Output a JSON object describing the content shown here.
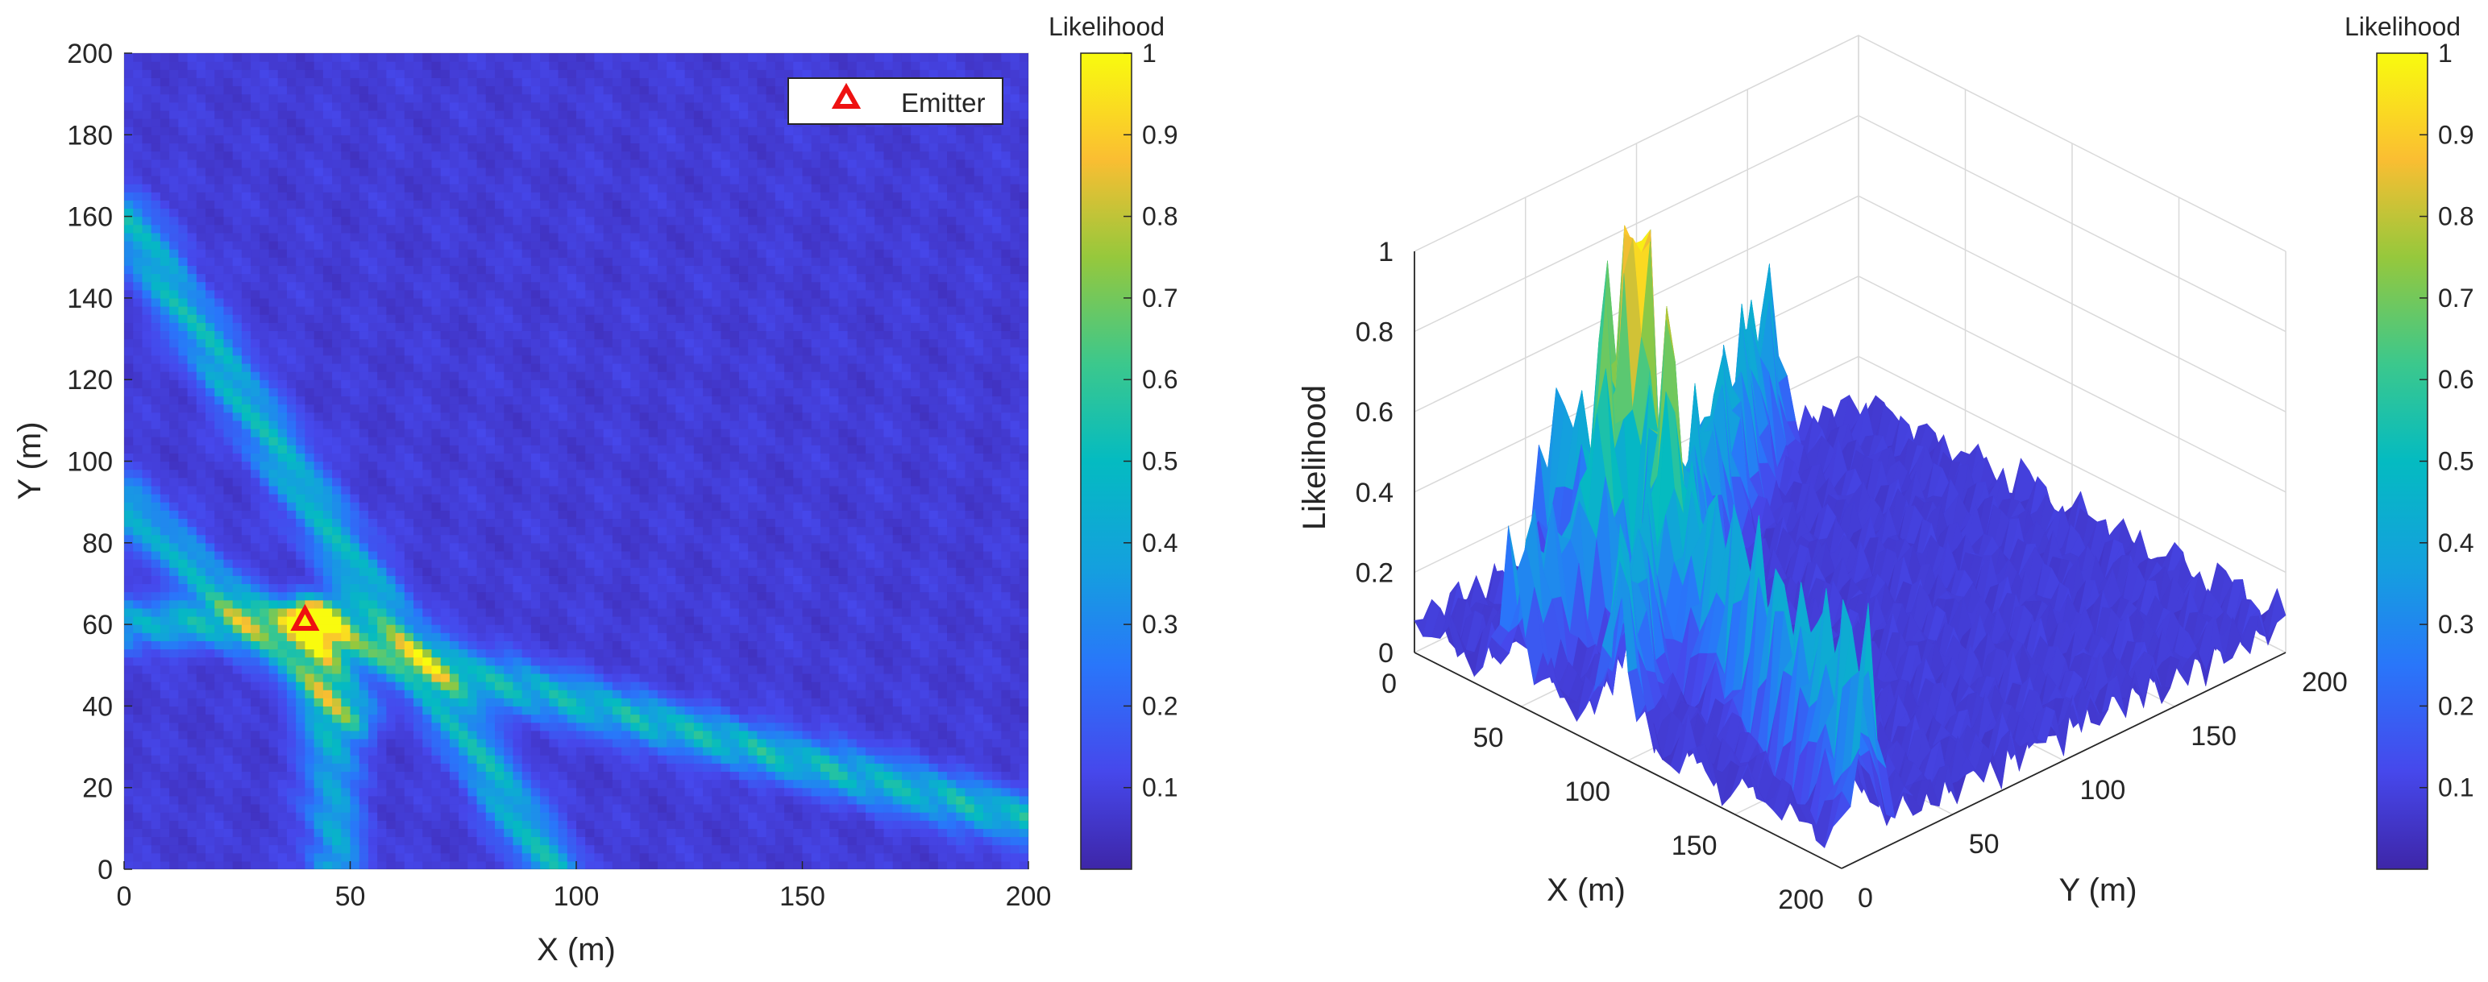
{
  "chart_data": [
    {
      "type": "heatmap",
      "name": "likelihood-map-2d",
      "xlabel": "X (m)",
      "ylabel": "Y (m)",
      "xlim": [
        0,
        200
      ],
      "ylim": [
        0,
        200
      ],
      "xticks": [
        0,
        50,
        100,
        150,
        200
      ],
      "yticks": [
        0,
        20,
        40,
        60,
        80,
        100,
        120,
        140,
        160,
        180,
        200
      ],
      "colorbar": {
        "title": "Likelihood",
        "ticks": [
          0.1,
          0.2,
          0.3,
          0.4,
          0.5,
          0.6,
          0.7,
          0.8,
          0.9,
          1
        ],
        "range": [
          0,
          1
        ]
      },
      "colormap": "parula",
      "emitter": {
        "x": 40,
        "y": 61
      },
      "legend": {
        "label": "Emitter",
        "position": "top-right"
      },
      "ridges": [
        {
          "name": "line-1",
          "from": [
            0,
            160
          ],
          "to": [
            95,
            0
          ],
          "peak": 0.38
        },
        {
          "name": "line-2",
          "from": [
            0,
            90
          ],
          "to": [
            50,
            38
          ],
          "peak": 0.35
        },
        {
          "name": "line-3",
          "from": [
            45,
            57
          ],
          "to": [
            200,
            12
          ],
          "peak": 0.4
        },
        {
          "name": "line-4",
          "from": [
            0,
            60
          ],
          "to": [
            45,
            61
          ],
          "peak": 0.35
        },
        {
          "name": "line-5",
          "from": [
            47,
            0
          ],
          "to": [
            44,
            60
          ],
          "peak": 0.32
        }
      ],
      "background": 0.08,
      "peak": {
        "x": 40,
        "y": 61,
        "value": 1.0
      }
    },
    {
      "type": "surface",
      "name": "likelihood-surface-3d",
      "xlabel": "X (m)",
      "ylabel": "Y (m)",
      "zlabel": "Likelihood",
      "xticks": [
        0,
        50,
        100,
        150,
        200
      ],
      "yticks": [
        0,
        50,
        100,
        150,
        200
      ],
      "zticks": [
        0,
        0.2,
        0.4,
        0.6,
        0.8,
        1
      ],
      "xlim": [
        0,
        200
      ],
      "ylim": [
        0,
        200
      ],
      "zlim": [
        0,
        1
      ],
      "colorbar": {
        "title": "Likelihood",
        "ticks": [
          0.1,
          0.2,
          0.3,
          0.4,
          0.5,
          0.6,
          0.7,
          0.8,
          0.9,
          1
        ],
        "range": [
          0,
          1
        ]
      },
      "peak": {
        "x": 40,
        "y": 61,
        "value": 1.0
      }
    }
  ]
}
